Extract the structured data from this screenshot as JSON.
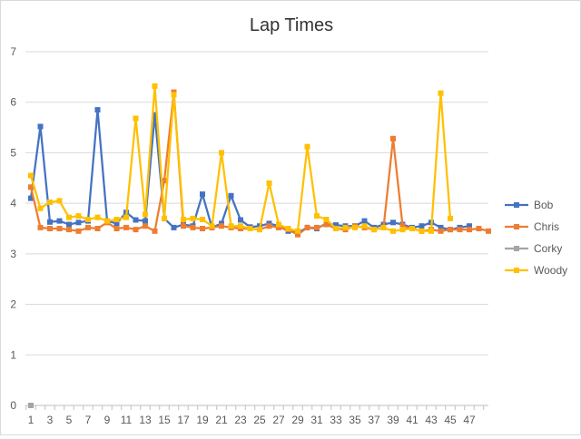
{
  "chart_data": {
    "type": "line",
    "title": "Lap Times",
    "xlabel": "",
    "ylabel": "",
    "ylim": [
      0,
      7
    ],
    "yticks": [
      0,
      1,
      2,
      3,
      4,
      5,
      6,
      7
    ],
    "xlim": [
      1,
      48
    ],
    "xtick_labels": [
      "1",
      "3",
      "5",
      "7",
      "9",
      "11",
      "13",
      "15",
      "17",
      "19",
      "21",
      "23",
      "25",
      "27",
      "29",
      "31",
      "33",
      "35",
      "37",
      "39",
      "41",
      "43",
      "45",
      "47"
    ],
    "grid": true,
    "legend_position": "right",
    "series": [
      {
        "name": "Bob",
        "color": "#4472C4",
        "marker": "square",
        "values": [
          4.1,
          5.52,
          3.63,
          3.65,
          3.58,
          3.62,
          3.65,
          5.85,
          3.65,
          3.6,
          3.82,
          3.67,
          3.65,
          5.75,
          3.7,
          3.52,
          3.58,
          3.55,
          4.18,
          3.52,
          3.6,
          4.15,
          3.67,
          3.53,
          3.55,
          3.6,
          3.55,
          3.45,
          3.42,
          3.52,
          3.5,
          3.6,
          3.57,
          3.55,
          3.55,
          3.65,
          3.52,
          3.58,
          3.62,
          3.58,
          3.52,
          3.55,
          3.62,
          3.52,
          3.48,
          3.52,
          3.55
        ]
      },
      {
        "name": "Chris",
        "color": "#ED7D31",
        "marker": "square",
        "values": [
          4.32,
          3.52,
          3.5,
          3.5,
          3.48,
          3.45,
          3.52,
          3.5,
          3.62,
          3.5,
          3.52,
          3.48,
          3.55,
          3.45,
          4.45,
          6.2,
          3.55,
          3.52,
          3.5,
          3.52,
          3.55,
          3.52,
          3.5,
          3.5,
          3.48,
          3.55,
          3.52,
          3.48,
          3.38,
          3.52,
          3.52,
          3.58,
          3.5,
          3.48,
          3.55,
          3.52,
          3.48,
          3.52,
          5.28,
          3.55,
          3.5,
          3.45,
          3.48,
          3.45,
          3.48,
          3.48,
          3.48,
          3.5,
          3.45
        ]
      },
      {
        "name": "Corky",
        "color": "#A5A5A5",
        "marker": "square",
        "values": [
          0
        ]
      },
      {
        "name": "Woody",
        "color": "#FFC000",
        "marker": "square",
        "values": [
          4.55,
          3.9,
          4.02,
          4.05,
          3.72,
          3.75,
          3.68,
          3.72,
          3.65,
          3.68,
          3.72,
          5.68,
          3.78,
          6.32,
          3.7,
          6.15,
          3.68,
          3.7,
          3.68,
          3.55,
          5,
          3.55,
          3.55,
          3.5,
          3.48,
          4.4,
          3.58,
          3.5,
          3.45,
          5.12,
          3.75,
          3.68,
          3.5,
          3.52,
          3.52,
          3.55,
          3.48,
          3.52,
          3.45,
          3.48,
          3.5,
          3.45,
          3.45,
          6.18,
          3.7
        ]
      }
    ]
  }
}
